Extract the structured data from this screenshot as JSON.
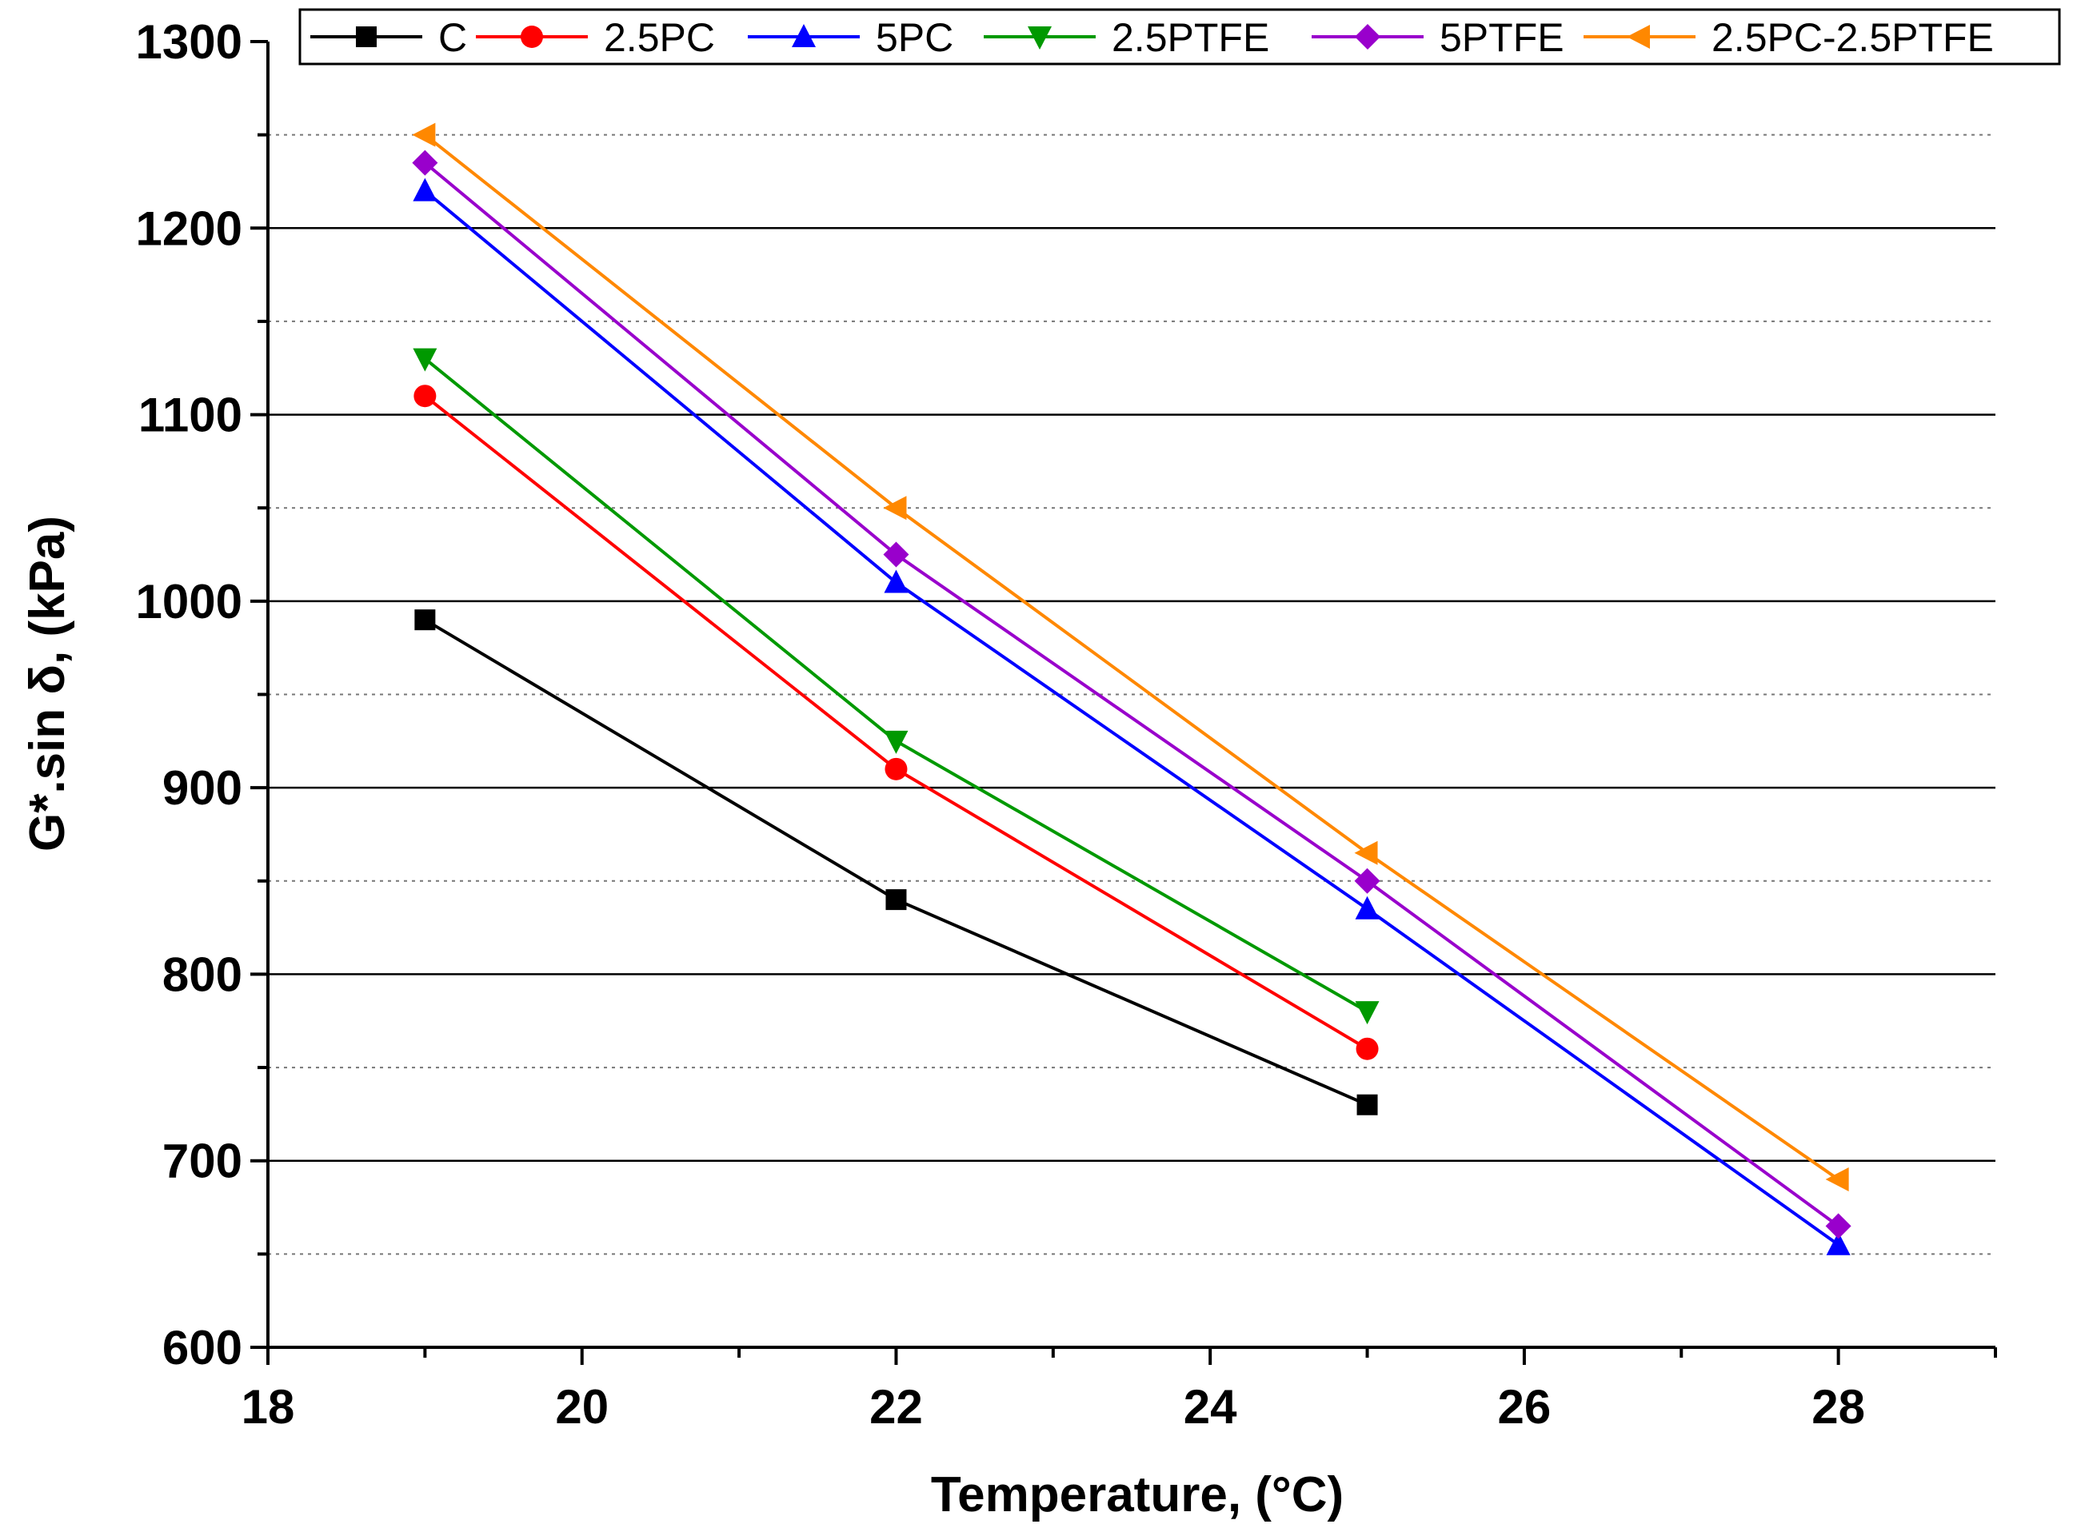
{
  "chart_data": {
    "type": "line",
    "title": "",
    "xlabel": "Temperature, (°C)",
    "ylabel": "G*.sin δ, (kPa)",
    "xlim": [
      18,
      29
    ],
    "ylim": [
      600,
      1300
    ],
    "x_ticks": [
      18,
      20,
      22,
      24,
      26,
      28
    ],
    "x_tick_labels": [
      "18",
      "20",
      "22",
      "24",
      "26",
      "28"
    ],
    "y_ticks": [
      600,
      700,
      800,
      900,
      1000,
      1100,
      1200,
      1300
    ],
    "y_tick_labels": [
      "600",
      "700",
      "800",
      "900",
      "1000",
      "1100",
      "1200",
      "1300"
    ],
    "major_grid": [
      700,
      800,
      900,
      1000,
      1100,
      1200
    ],
    "minor_grid": [
      650,
      750,
      850,
      950,
      1050,
      1150,
      1250
    ],
    "legend_position": "top",
    "series": [
      {
        "name": "C",
        "color": "#000000",
        "marker": "square",
        "x": [
          19,
          22,
          25
        ],
        "values": [
          990,
          840,
          730
        ]
      },
      {
        "name": "2.5PC",
        "color": "#ff0000",
        "marker": "circle",
        "x": [
          19,
          22,
          25
        ],
        "values": [
          1110,
          910,
          760
        ]
      },
      {
        "name": "5PC",
        "color": "#0000ff",
        "marker": "triangle-up",
        "x": [
          19,
          22,
          25,
          28
        ],
        "values": [
          1220,
          1010,
          835,
          655
        ]
      },
      {
        "name": "2.5PTFE",
        "color": "#009900",
        "marker": "triangle-down",
        "x": [
          19,
          22,
          25
        ],
        "values": [
          1130,
          925,
          780
        ]
      },
      {
        "name": "5PTFE",
        "color": "#9900cc",
        "marker": "diamond",
        "x": [
          19,
          22,
          25,
          28
        ],
        "values": [
          1235,
          1025,
          850,
          665
        ]
      },
      {
        "name": "2.5PC-2.5PTFE",
        "color": "#ff8800",
        "marker": "triangle-left",
        "x": [
          19,
          22,
          25,
          28
        ],
        "values": [
          1250,
          1050,
          865,
          690
        ]
      }
    ]
  }
}
